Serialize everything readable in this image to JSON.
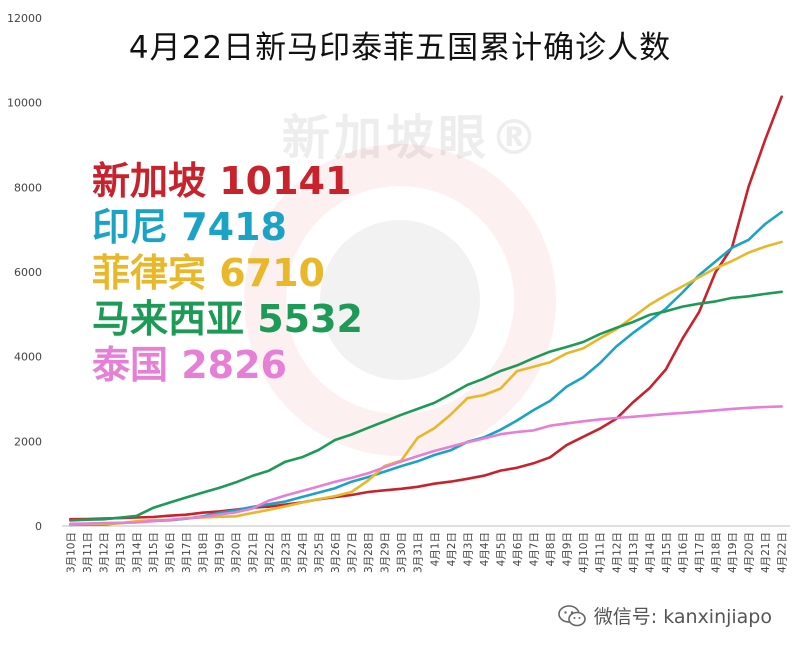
{
  "title": "4月22日新马印泰菲五国累计确诊人数",
  "watermark": "新加坡眼®",
  "footer": {
    "account": "微信号: kanxinjiapo"
  },
  "chart_data": {
    "type": "line",
    "title": "4月22日新马印泰菲五国累计确诊人数",
    "xlabel": "",
    "ylabel": "",
    "ylim": [
      0,
      12000
    ],
    "yticks": [
      0,
      2000,
      4000,
      6000,
      8000,
      10000,
      12000
    ],
    "grid": false,
    "legend_position": "top-left",
    "categories": [
      "3月10日",
      "3月11日",
      "3月12日",
      "3月13日",
      "3月14日",
      "3月15日",
      "3月16日",
      "3月17日",
      "3月18日",
      "3月19日",
      "3月20日",
      "3月21日",
      "3月22日",
      "3月23日",
      "3月24日",
      "3月25日",
      "3月26日",
      "3月27日",
      "3月28日",
      "3月29日",
      "3月30日",
      "3月31日",
      "4月1日",
      "4月2日",
      "4月3日",
      "4月4日",
      "4月5日",
      "4月6日",
      "4月7日",
      "4月8日",
      "4月9日",
      "4月10日",
      "4月11日",
      "4月12日",
      "4月13日",
      "4月14日",
      "4月15日",
      "4月16日",
      "4月17日",
      "4月18日",
      "4月19日",
      "4月20日",
      "4月21日",
      "4月22日"
    ],
    "series": [
      {
        "name": "新加坡",
        "label": "新加坡 10141",
        "color": "#c8232d",
        "values": [
          160,
          166,
          178,
          187,
          200,
          212,
          243,
          266,
          313,
          345,
          385,
          432,
          455,
          509,
          558,
          631,
          683,
          732,
          802,
          844,
          879,
          926,
          1000,
          1049,
          1114,
          1189,
          1309,
          1375,
          1481,
          1623,
          1910,
          2108,
          2299,
          2532,
          2918,
          3252,
          3699,
          4427,
          5050,
          5992,
          6588,
          8014,
          9125,
          10141
        ]
      },
      {
        "name": "印尼",
        "label": "印尼 7418",
        "color": "#1ba3c6",
        "values": [
          27,
          34,
          34,
          69,
          96,
          117,
          134,
          172,
          227,
          309,
          369,
          450,
          514,
          579,
          686,
          790,
          893,
          1046,
          1155,
          1285,
          1414,
          1528,
          1677,
          1790,
          1986,
          2092,
          2273,
          2491,
          2738,
          2956,
          3293,
          3512,
          3842,
          4241,
          4557,
          4839,
          5136,
          5516,
          5923,
          6248,
          6575,
          6760,
          7135,
          7418
        ]
      },
      {
        "name": "菲律宾",
        "label": "菲律宾 6710",
        "color": "#e8b82a",
        "values": [
          33,
          49,
          52,
          64,
          111,
          140,
          142,
          187,
          202,
          217,
          230,
          307,
          380,
          462,
          552,
          636,
          707,
          803,
          1075,
          1418,
          1546,
          2084,
          2311,
          2633,
          3018,
          3094,
          3246,
          3660,
          3764,
          3870,
          4076,
          4195,
          4428,
          4648,
          4932,
          5223,
          5453,
          5660,
          5878,
          6087,
          6259,
          6459,
          6599,
          6710
        ]
      },
      {
        "name": "马来西亚",
        "label": "马来西亚 5532",
        "color": "#1e9a57",
        "values": [
          129,
          149,
          158,
          197,
          238,
          428,
          553,
          673,
          790,
          900,
          1030,
          1183,
          1306,
          1518,
          1624,
          1796,
          2031,
          2161,
          2320,
          2470,
          2626,
          2766,
          2908,
          3116,
          3333,
          3483,
          3662,
          3793,
          3963,
          4119,
          4228,
          4346,
          4530,
          4683,
          4817,
          4987,
          5072,
          5182,
          5251,
          5305,
          5389,
          5425,
          5482,
          5532
        ]
      },
      {
        "name": "泰国",
        "label": "泰国 2826",
        "color": "#e67fd6",
        "values": [
          53,
          59,
          70,
          75,
          82,
          114,
          147,
          177,
          212,
          272,
          322,
          411,
          599,
          721,
          827,
          934,
          1045,
          1136,
          1245,
          1388,
          1524,
          1651,
          1771,
          1875,
          1978,
          2067,
          2169,
          2220,
          2258,
          2369,
          2423,
          2473,
          2518,
          2551,
          2579,
          2613,
          2643,
          2672,
          2700,
          2733,
          2765,
          2792,
          2811,
          2826
        ]
      }
    ]
  }
}
